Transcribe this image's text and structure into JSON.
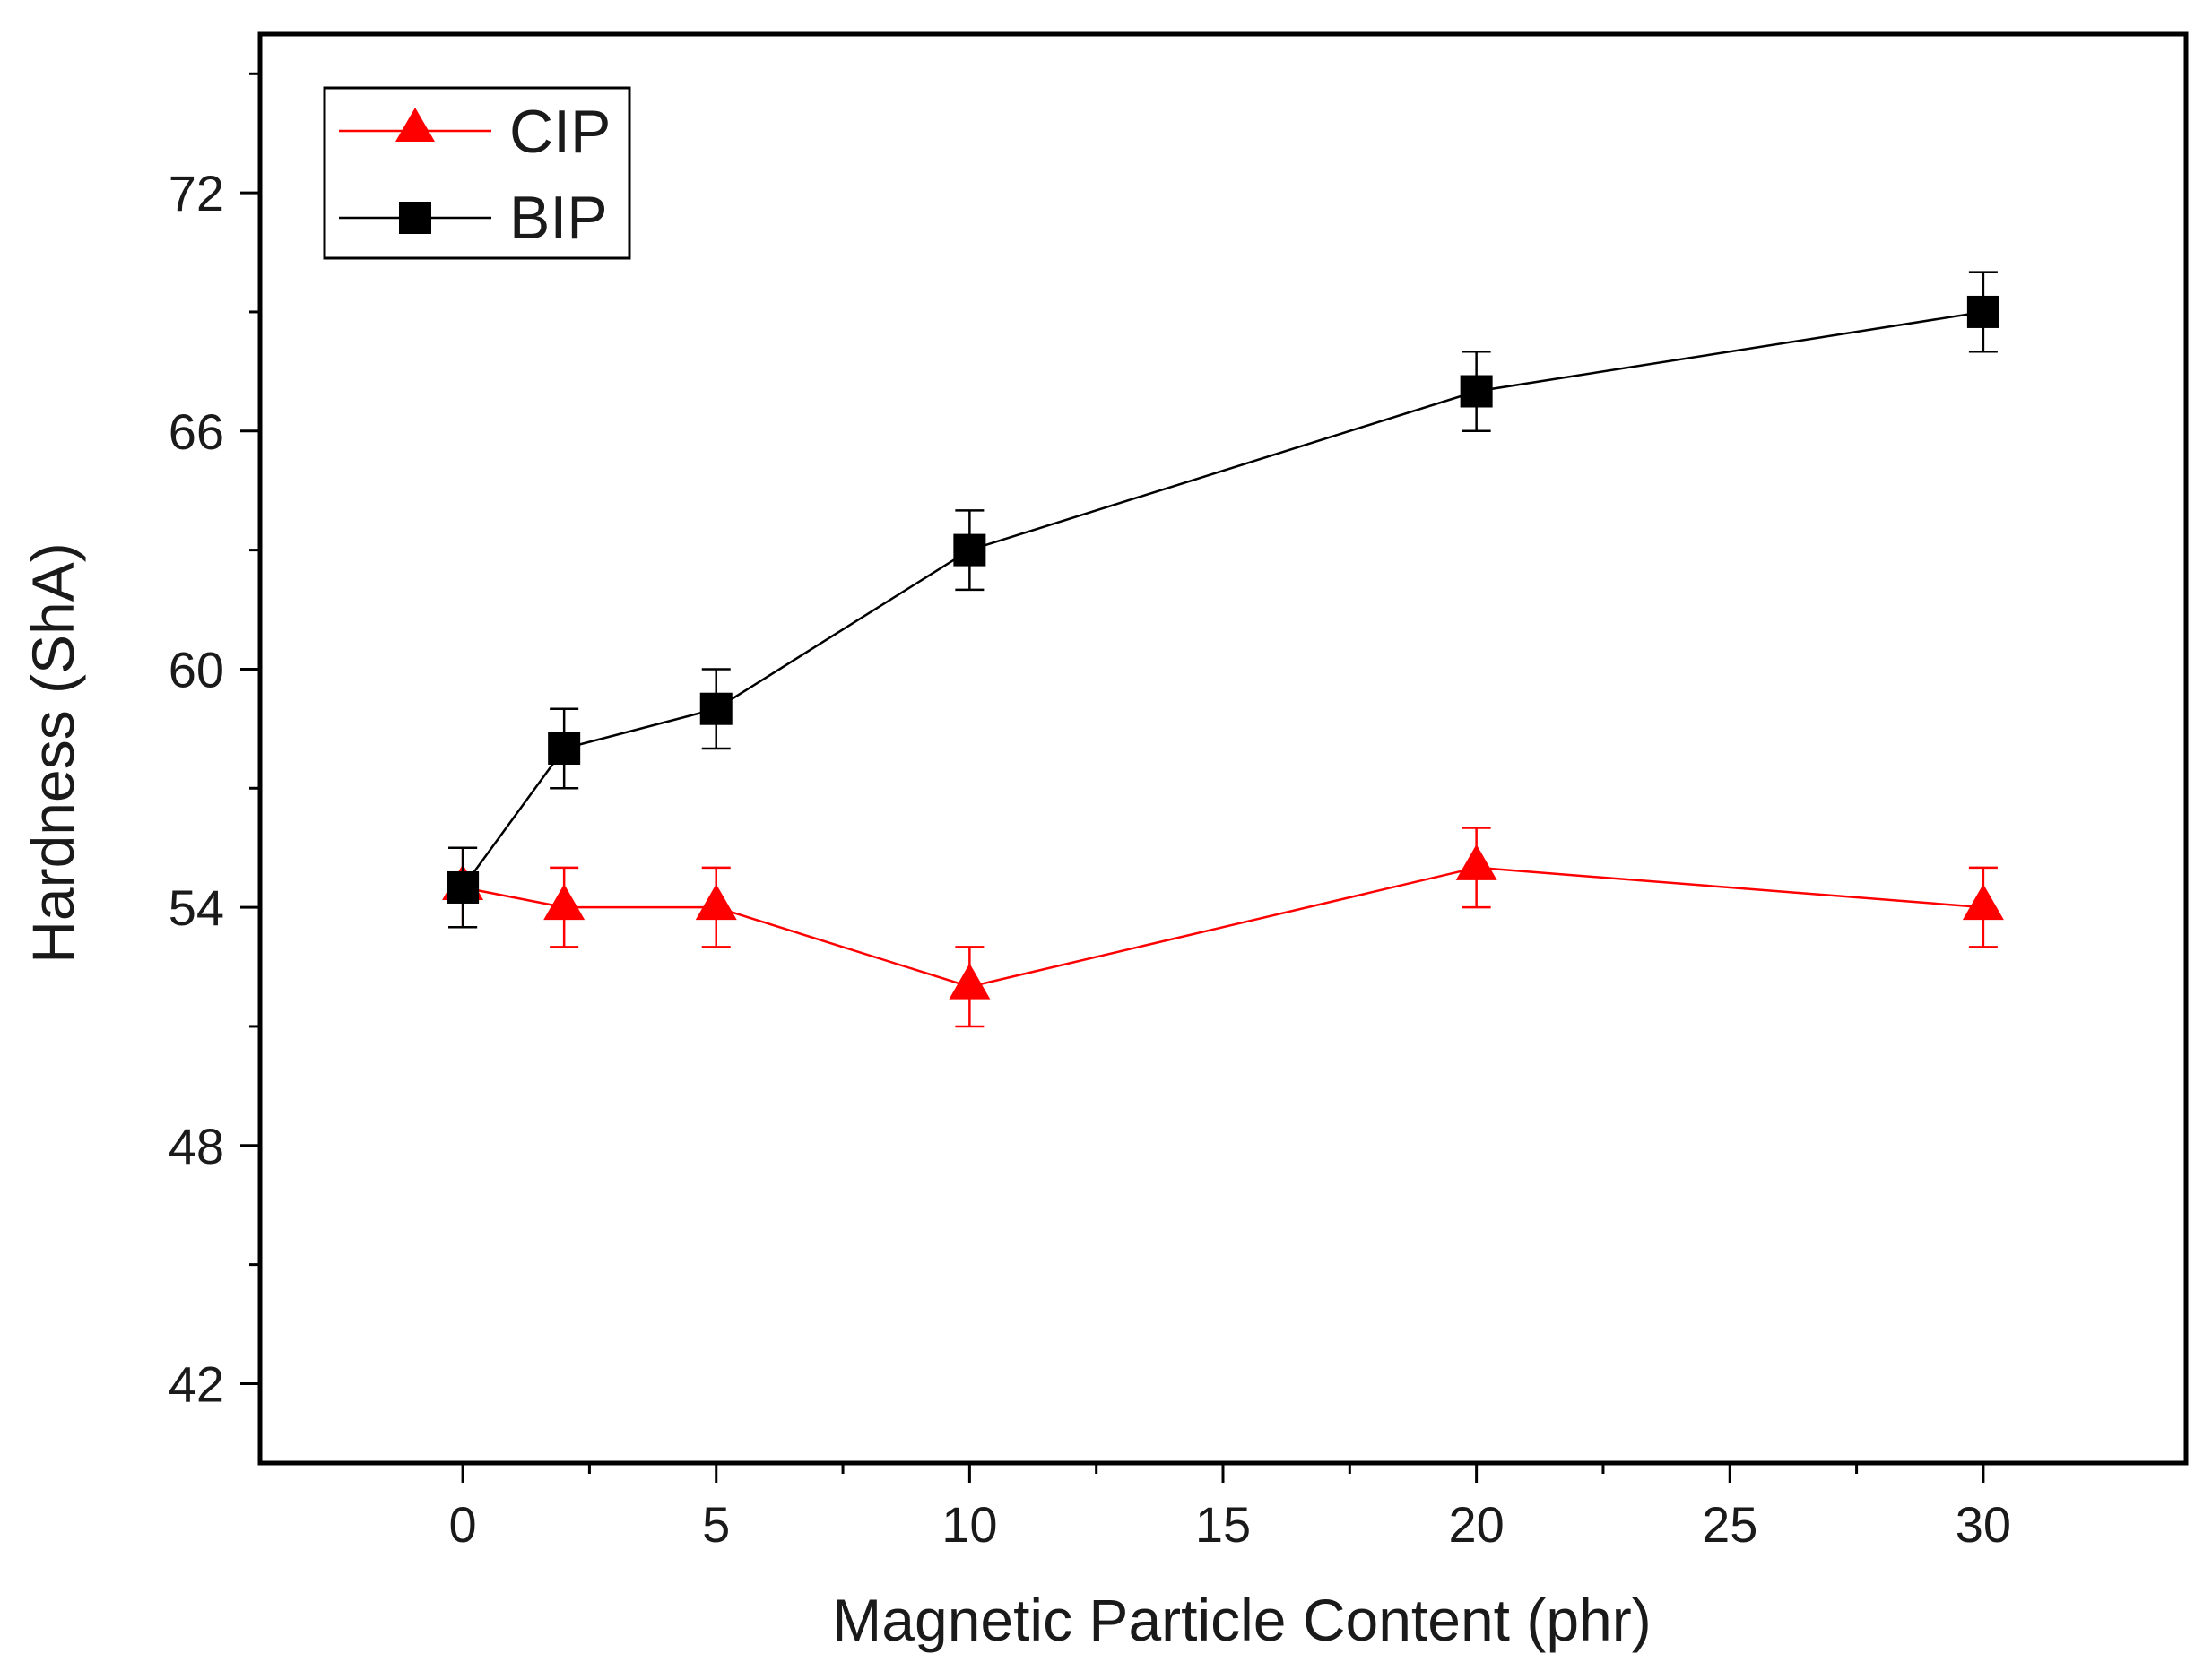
{
  "chart_data": {
    "type": "line",
    "title": "",
    "xlabel": "Magnetic Particle Content (phr)",
    "ylabel": "Hardness (ShA)",
    "xlim": [
      -4,
      34
    ],
    "ylim": [
      40,
      76
    ],
    "xticks": [
      0,
      5,
      10,
      15,
      20,
      25,
      30
    ],
    "xtick_labels": [
      "0",
      "5",
      "10",
      "15",
      "20",
      "25",
      "30"
    ],
    "yticks": [
      42,
      48,
      54,
      60,
      66,
      72
    ],
    "ytick_labels": [
      "42",
      "48",
      "54",
      "60",
      "66",
      "72"
    ],
    "grid": false,
    "legend_position": "top-left",
    "series": [
      {
        "name": "CIP",
        "marker": "triangle",
        "color": "#ff0000",
        "x": [
          0,
          2,
          5,
          10,
          20,
          30
        ],
        "y": [
          54.5,
          54,
          54,
          52,
          55,
          54
        ],
        "error": [
          1,
          1,
          1,
          1,
          1,
          1
        ]
      },
      {
        "name": "BIP",
        "marker": "square",
        "color": "#000000",
        "x": [
          0,
          2,
          5,
          10,
          20,
          30
        ],
        "y": [
          54.5,
          58,
          59,
          63,
          67,
          69
        ],
        "error": [
          1,
          1,
          1,
          1,
          1,
          1
        ]
      }
    ]
  }
}
